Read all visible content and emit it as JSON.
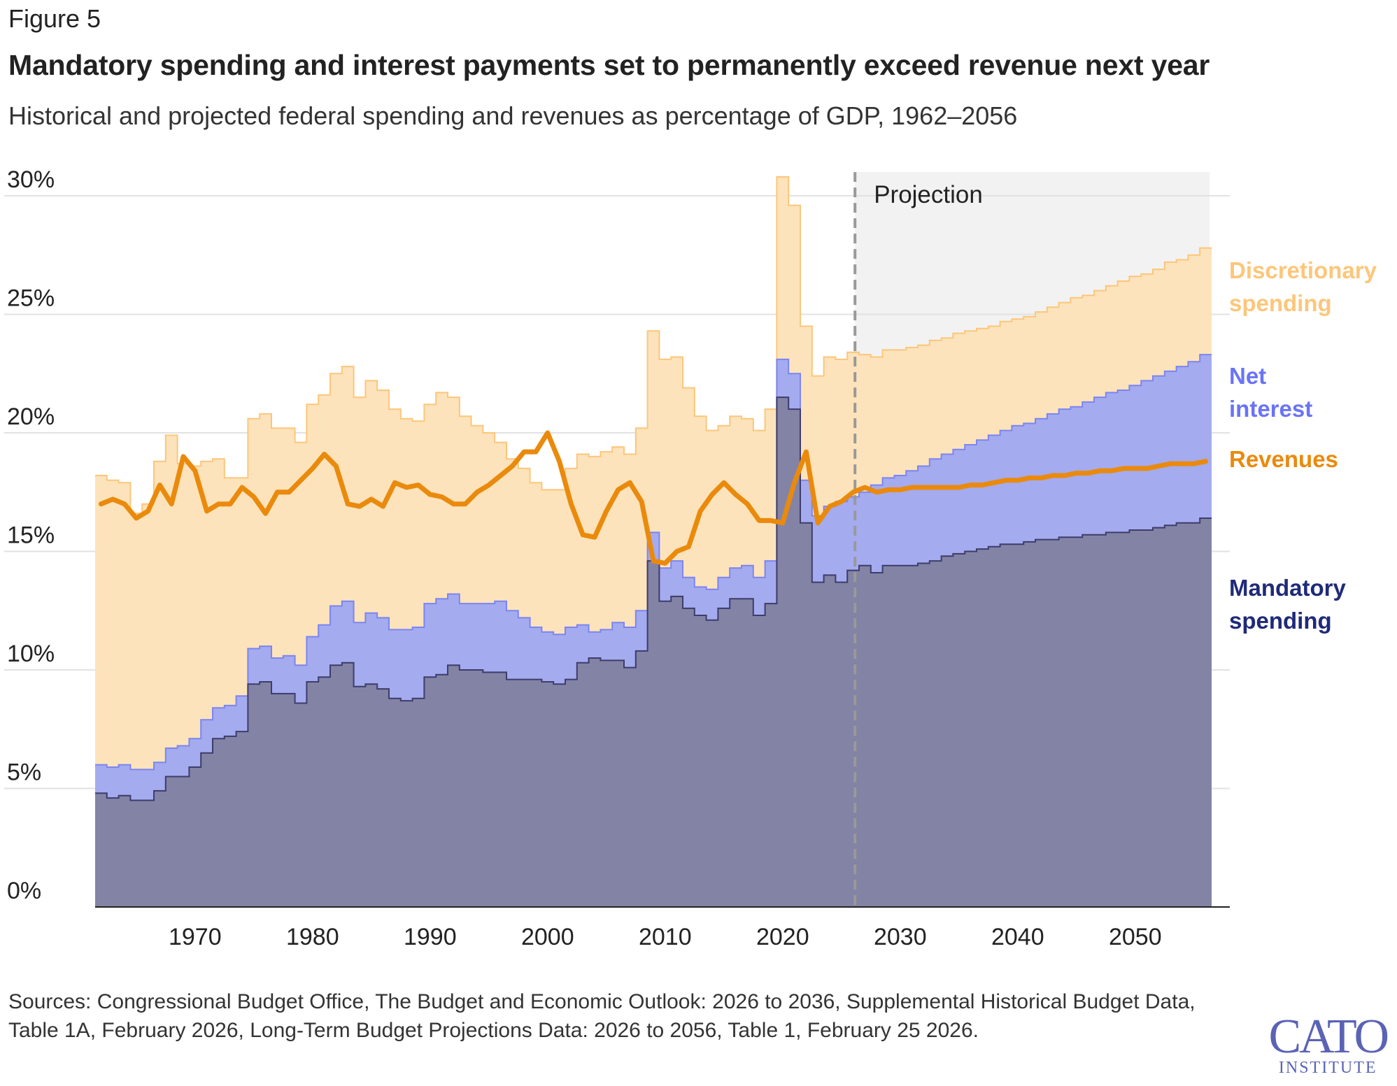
{
  "figure_label": "Figure 5",
  "title": "Mandatory spending and interest payments set to permanently exceed revenue next year",
  "subtitle": "Historical and projected federal spending and revenues as percentage of GDP, 1962–2056",
  "sources": "Sources: Congressional Budget Office, The Budget and Economic Outlook: 2026 to 2036, Supplemental Historical Budget Data, Table 1A, February 2026, Long-Term Budget Projections Data: 2026 to 2056, Table 1, February 25 2026.",
  "logo": {
    "line1": "CATO",
    "line2": "INSTITUTE"
  },
  "colors": {
    "mandatory_fill": "#8383a5",
    "mandatory_line": "#3d3d6b",
    "mandatory_label": "#1f2a78",
    "interest_fill": "#a4abef",
    "interest_line": "#7c85f0",
    "interest_label": "#6a74f5",
    "discretionary_fill": "#fde3bb",
    "discretionary_line": "#fcc67a",
    "discretionary_label": "#fcc67a",
    "revenue": "#ea8a0c",
    "projection_bg": "#f2f2f2",
    "grid": "#e2e2e2"
  },
  "chart_data": {
    "type": "area",
    "stacked": true,
    "step": true,
    "x_start": 1962,
    "x_end": 2056,
    "xlim": [
      1962,
      2057
    ],
    "ylim": [
      0,
      30
    ],
    "yunit": "%",
    "xticks": [
      1970,
      1980,
      1990,
      2000,
      2010,
      2020,
      2030,
      2040,
      2050
    ],
    "yticks": [
      0,
      5,
      10,
      15,
      20,
      25,
      30
    ],
    "ytick_labels": [
      "0%",
      "5%",
      "10%",
      "15%",
      "20%",
      "25%",
      "30%"
    ],
    "grid": "horizontal",
    "legend_placement": "right, inline labels",
    "projection": {
      "label": "Projection",
      "start": 2026
    },
    "series": [
      {
        "name": "Mandatory spending",
        "kind": "area",
        "values": [
          4.8,
          4.6,
          4.7,
          4.5,
          4.5,
          4.9,
          5.5,
          5.5,
          5.9,
          6.5,
          7.1,
          7.2,
          7.4,
          9.4,
          9.5,
          9.0,
          9.0,
          8.6,
          9.5,
          9.7,
          10.2,
          10.3,
          9.3,
          9.4,
          9.2,
          8.8,
          8.7,
          8.8,
          9.7,
          9.8,
          10.2,
          10.0,
          10.0,
          9.9,
          9.9,
          9.6,
          9.6,
          9.6,
          9.5,
          9.4,
          9.6,
          10.3,
          10.5,
          10.4,
          10.4,
          10.1,
          10.8,
          14.6,
          12.9,
          13.1,
          12.6,
          12.3,
          12.1,
          12.6,
          13.0,
          13.0,
          12.3,
          12.8,
          21.5,
          21.0,
          16.2,
          13.7,
          14.0,
          13.7,
          14.2,
          14.4,
          14.1,
          14.4,
          14.4,
          14.4,
          14.5,
          14.6,
          14.8,
          14.9,
          15.0,
          15.1,
          15.2,
          15.3,
          15.3,
          15.4,
          15.5,
          15.5,
          15.6,
          15.6,
          15.7,
          15.7,
          15.8,
          15.8,
          15.9,
          15.9,
          16.0,
          16.1,
          16.2,
          16.2,
          16.4
        ]
      },
      {
        "name": "Net interest",
        "kind": "area",
        "values": [
          1.2,
          1.3,
          1.3,
          1.3,
          1.3,
          1.2,
          1.2,
          1.3,
          1.2,
          1.4,
          1.3,
          1.3,
          1.5,
          1.5,
          1.5,
          1.5,
          1.6,
          1.6,
          1.9,
          2.2,
          2.5,
          2.6,
          2.7,
          3.0,
          3.0,
          2.9,
          3.0,
          3.0,
          3.1,
          3.2,
          3.0,
          2.8,
          2.8,
          2.9,
          3.0,
          2.9,
          2.6,
          2.2,
          2.1,
          2.1,
          2.2,
          1.6,
          1.1,
          1.3,
          1.6,
          1.7,
          1.7,
          1.2,
          1.4,
          1.5,
          1.3,
          1.2,
          1.3,
          1.3,
          1.3,
          1.4,
          1.6,
          1.8,
          1.6,
          1.5,
          1.8,
          2.8,
          2.9,
          3.4,
          3.1,
          3.1,
          3.7,
          3.7,
          3.8,
          4.0,
          4.1,
          4.3,
          4.3,
          4.4,
          4.5,
          4.6,
          4.7,
          4.8,
          5.0,
          5.0,
          5.1,
          5.3,
          5.4,
          5.5,
          5.6,
          5.8,
          5.9,
          6.0,
          6.1,
          6.3,
          6.4,
          6.5,
          6.6,
          6.8,
          6.9
        ]
      },
      {
        "name": "Discretionary spending",
        "kind": "area",
        "values": [
          12.2,
          12.1,
          11.9,
          10.8,
          11.2,
          12.7,
          13.2,
          11.9,
          11.5,
          10.9,
          10.5,
          9.6,
          9.2,
          9.7,
          9.8,
          9.7,
          9.6,
          9.4,
          9.8,
          9.7,
          9.8,
          9.9,
          9.5,
          9.8,
          9.6,
          9.3,
          8.9,
          8.7,
          8.4,
          8.7,
          8.3,
          7.9,
          7.5,
          7.2,
          6.7,
          6.4,
          6.3,
          6.1,
          6.0,
          6.1,
          6.7,
          7.2,
          7.4,
          7.5,
          7.4,
          7.3,
          7.7,
          8.5,
          8.8,
          8.6,
          8.0,
          7.2,
          6.7,
          6.4,
          6.4,
          6.2,
          6.2,
          6.4,
          7.7,
          7.1,
          6.5,
          5.9,
          6.3,
          6.0,
          6.1,
          5.8,
          5.4,
          5.4,
          5.3,
          5.2,
          5.1,
          5.0,
          4.9,
          4.9,
          4.8,
          4.7,
          4.6,
          4.6,
          4.5,
          4.5,
          4.5,
          4.5,
          4.5,
          4.6,
          4.5,
          4.5,
          4.5,
          4.6,
          4.6,
          4.5,
          4.5,
          4.6,
          4.5,
          4.5,
          4.5
        ]
      },
      {
        "name": "Revenues",
        "kind": "line",
        "values": [
          17.0,
          17.2,
          17.0,
          16.4,
          16.7,
          17.8,
          17.0,
          19.0,
          18.4,
          16.7,
          17.0,
          17.0,
          17.7,
          17.3,
          16.6,
          17.5,
          17.5,
          18.0,
          18.5,
          19.1,
          18.6,
          17.0,
          16.9,
          17.2,
          16.9,
          17.9,
          17.7,
          17.8,
          17.4,
          17.3,
          17.0,
          17.0,
          17.5,
          17.8,
          18.2,
          18.6,
          19.2,
          19.2,
          20.0,
          18.8,
          17.0,
          15.7,
          15.6,
          16.7,
          17.6,
          17.9,
          17.1,
          14.6,
          14.5,
          15.0,
          15.2,
          16.7,
          17.4,
          17.9,
          17.4,
          17.0,
          16.3,
          16.3,
          16.2,
          17.9,
          19.2,
          16.2,
          16.9,
          17.1,
          17.5,
          17.7,
          17.5,
          17.6,
          17.6,
          17.7,
          17.7,
          17.7,
          17.7,
          17.7,
          17.8,
          17.8,
          17.9,
          18.0,
          18.0,
          18.1,
          18.1,
          18.2,
          18.2,
          18.3,
          18.3,
          18.4,
          18.4,
          18.5,
          18.5,
          18.5,
          18.6,
          18.7,
          18.7,
          18.7,
          18.8
        ]
      }
    ],
    "labels": {
      "discretionary": [
        "Discretionary",
        "spending"
      ],
      "interest": [
        "Net",
        "interest"
      ],
      "revenues": [
        "Revenues"
      ],
      "mandatory": [
        "Mandatory",
        "spending"
      ]
    }
  }
}
